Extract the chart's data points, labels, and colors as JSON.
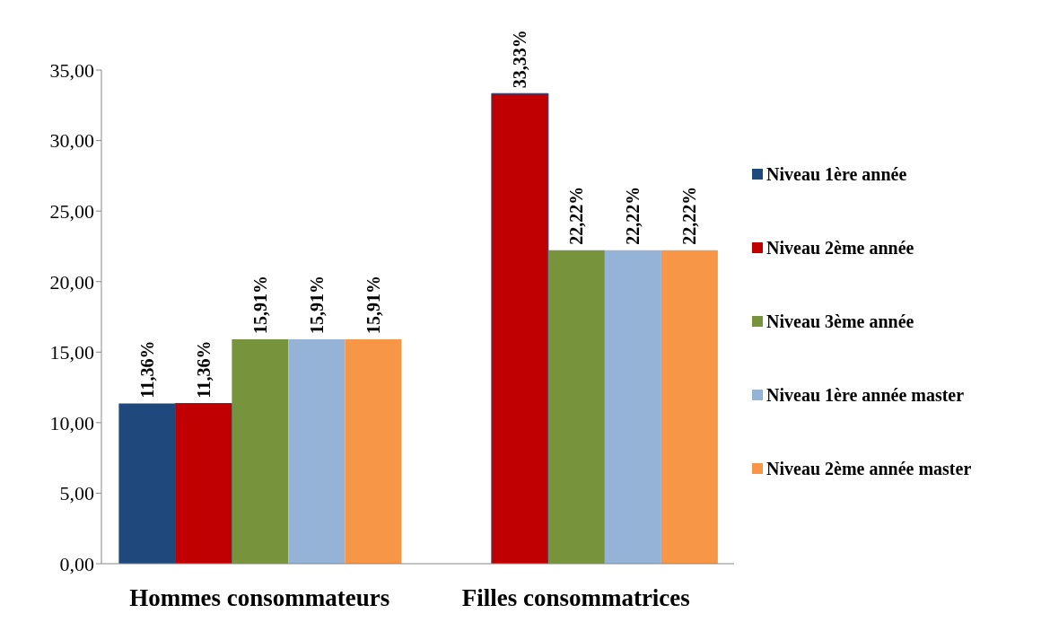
{
  "chart_data": {
    "type": "bar",
    "categories": [
      "Hommes consommateurs",
      "Filles consommatrices"
    ],
    "series": [
      {
        "name": "Niveau 1ère année",
        "color": "#1f497d",
        "values": [
          11.36,
          null
        ],
        "value_labels": [
          "11,36%",
          null
        ]
      },
      {
        "name": "Niveau 2ème année",
        "color": "#c00000",
        "values": [
          11.36,
          33.33
        ],
        "value_labels": [
          "11,36%",
          "33,33%"
        ]
      },
      {
        "name": "Niveau 3ème année",
        "color": "#77933c",
        "values": [
          15.91,
          22.22
        ],
        "value_labels": [
          "15,91%",
          "22,22%"
        ]
      },
      {
        "name": "Niveau 1ère année master",
        "color": "#95b3d7",
        "values": [
          15.91,
          22.22
        ],
        "value_labels": [
          "15,91%",
          "22,22%"
        ]
      },
      {
        "name": "Niveau 2ème année master",
        "color": "#f79646",
        "values": [
          15.91,
          22.22
        ],
        "value_labels": [
          "15,91%",
          "22,22%"
        ]
      }
    ],
    "ylim": [
      0,
      35
    ],
    "yticks": [
      {
        "value": 0,
        "label": "0,00"
      },
      {
        "value": 5,
        "label": "5,00"
      },
      {
        "value": 10,
        "label": "10,00"
      },
      {
        "value": 15,
        "label": "15,00"
      },
      {
        "value": 20,
        "label": "20,00"
      },
      {
        "value": 25,
        "label": "25,00"
      },
      {
        "value": 30,
        "label": "30,00"
      },
      {
        "value": 35,
        "label": "35,00"
      }
    ],
    "grid": false,
    "legend": "right"
  }
}
